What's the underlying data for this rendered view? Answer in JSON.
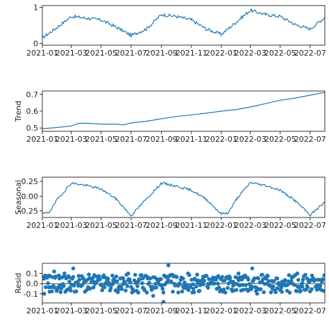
{
  "chart_data": [
    {
      "type": "line",
      "panel": "observed",
      "ylabel": "",
      "ylim": [
        -0.05,
        1.05
      ],
      "yticks": [
        0,
        1
      ],
      "xlim": [
        "2021-01-01",
        "2022-07-31"
      ],
      "xtick_labels": [
        "2021-01",
        "2021-03",
        "2021-05",
        "2021-07",
        "2021-09",
        "2021-11",
        "2022-01",
        "2022-03",
        "2022-05",
        "2022-07"
      ],
      "x": [
        "2021-01-01",
        "2021-02-01",
        "2021-03-01",
        "2021-04-01",
        "2021-05-01",
        "2021-06-01",
        "2021-07-01",
        "2021-08-01",
        "2021-09-01",
        "2021-10-01",
        "2021-11-01",
        "2021-12-01",
        "2022-01-01",
        "2022-02-01",
        "2022-03-01",
        "2022-04-01",
        "2022-05-01",
        "2022-06-01",
        "2022-07-01",
        "2022-07-31"
      ],
      "values": [
        0.15,
        0.45,
        0.75,
        0.7,
        0.65,
        0.45,
        0.22,
        0.4,
        0.8,
        0.75,
        0.65,
        0.4,
        0.25,
        0.6,
        0.92,
        0.8,
        0.75,
        0.52,
        0.4,
        0.72
      ],
      "series_color": "#1f77b4"
    },
    {
      "type": "line",
      "panel": "trend",
      "ylabel": "Trend",
      "ylim": [
        0.48,
        0.72
      ],
      "yticks": [
        0.5,
        0.6,
        0.7
      ],
      "xlim": [
        "2021-01-01",
        "2022-07-31"
      ],
      "xtick_labels": [
        "2021-01",
        "2021-03",
        "2021-05",
        "2021-07",
        "2021-09",
        "2021-11",
        "2022-01",
        "2022-03",
        "2022-05",
        "2022-07"
      ],
      "x": [
        "2021-01-01",
        "2021-02-01",
        "2021-03-01",
        "2021-03-15",
        "2021-04-01",
        "2021-05-01",
        "2021-06-01",
        "2021-06-15",
        "2021-07-01",
        "2021-08-01",
        "2021-09-01",
        "2021-10-01",
        "2021-11-01",
        "2021-12-01",
        "2022-01-01",
        "2022-02-01",
        "2022-03-01",
        "2022-04-01",
        "2022-05-01",
        "2022-06-01",
        "2022-07-01",
        "2022-07-31"
      ],
      "values": [
        0.495,
        0.503,
        0.512,
        0.527,
        0.528,
        0.523,
        0.523,
        0.518,
        0.53,
        0.54,
        0.555,
        0.568,
        0.578,
        0.588,
        0.6,
        0.61,
        0.625,
        0.645,
        0.665,
        0.678,
        0.695,
        0.712
      ],
      "series_color": "#1f77b4"
    },
    {
      "type": "line",
      "panel": "seasonal",
      "ylabel": "Seasonal",
      "ylim": [
        -0.36,
        0.32
      ],
      "yticks": [
        -0.25,
        0.0,
        0.25
      ],
      "xlim": [
        "2021-01-01",
        "2022-07-31"
      ],
      "xtick_labels": [
        "2021-01",
        "2021-03",
        "2021-05",
        "2021-07",
        "2021-09",
        "2021-11",
        "2022-01",
        "2022-03",
        "2022-05",
        "2022-07"
      ],
      "x": [
        "2021-01-01",
        "2021-01-15",
        "2021-02-01",
        "2021-03-01",
        "2021-04-01",
        "2021-05-01",
        "2021-06-01",
        "2021-07-01",
        "2021-08-01",
        "2021-09-01",
        "2021-10-01",
        "2021-11-01",
        "2021-12-01",
        "2022-01-01",
        "2022-01-15",
        "2022-02-01",
        "2022-03-01",
        "2022-04-01",
        "2022-05-01",
        "2022-06-01",
        "2022-07-01",
        "2022-07-31"
      ],
      "values": [
        -0.3,
        -0.27,
        -0.05,
        0.22,
        0.18,
        0.12,
        -0.05,
        -0.33,
        -0.05,
        0.22,
        0.17,
        0.1,
        -0.05,
        -0.3,
        -0.28,
        -0.05,
        0.23,
        0.18,
        0.1,
        -0.08,
        -0.32,
        -0.1
      ],
      "series_color": "#1f77b4"
    },
    {
      "type": "scatter",
      "panel": "resid",
      "ylabel": "Resid",
      "ylim": [
        -0.19,
        0.2
      ],
      "yticks": [
        -0.1,
        0.0,
        0.1
      ],
      "baseline": 0,
      "xlim": [
        "2021-01-01",
        "2022-07-31"
      ],
      "xtick_labels": [
        "2021-01",
        "2021-03",
        "2021-05",
        "2021-07",
        "2021-09",
        "2021-11",
        "2022-01",
        "2022-03",
        "2022-05",
        "2022-07"
      ],
      "x": [
        "2021-01-05",
        "2021-01-15",
        "2021-01-25",
        "2021-02-05",
        "2021-02-15",
        "2021-02-25",
        "2021-03-05",
        "2021-03-15",
        "2021-03-25",
        "2021-04-05",
        "2021-04-15",
        "2021-04-25",
        "2021-05-05",
        "2021-05-15",
        "2021-05-25",
        "2021-06-05",
        "2021-06-15",
        "2021-06-25",
        "2021-07-05",
        "2021-07-15",
        "2021-07-25",
        "2021-08-05",
        "2021-08-15",
        "2021-08-25",
        "2021-09-05",
        "2021-09-15",
        "2021-09-25",
        "2021-10-05",
        "2021-10-15",
        "2021-10-25",
        "2021-11-05",
        "2021-11-15",
        "2021-11-25",
        "2021-12-05",
        "2021-12-15",
        "2021-12-25",
        "2022-01-05",
        "2022-01-15",
        "2022-01-25",
        "2022-02-05",
        "2022-02-15",
        "2022-02-25",
        "2022-03-05",
        "2022-03-15",
        "2022-03-25",
        "2022-04-05",
        "2022-04-15",
        "2022-04-25",
        "2022-05-05",
        "2022-05-15",
        "2022-05-25",
        "2022-06-05",
        "2022-06-15",
        "2022-06-25",
        "2022-07-05",
        "2022-07-15",
        "2022-07-25"
      ],
      "values": [
        -0.1,
        0.08,
        0.12,
        0.05,
        0.1,
        0.02,
        0.15,
        -0.02,
        0.05,
        -0.05,
        0.02,
        0.07,
        -0.03,
        0.04,
        0.0,
        -0.06,
        0.05,
        0.1,
        -0.08,
        0.02,
        -0.04,
        0.06,
        -0.12,
        0.02,
        -0.18,
        0.18,
        0.08,
        -0.02,
        0.05,
        0.1,
        -0.05,
        0.03,
        0.07,
        -0.04,
        0.06,
        0.0,
        -0.08,
        0.05,
        -0.02,
        0.1,
        -0.06,
        0.04,
        0.15,
        -0.1,
        0.02,
        0.08,
        -0.05,
        0.05,
        0.02,
        -0.07,
        0.06,
        0.1,
        -0.03,
        0.05,
        0.08,
        -0.06,
        0.04
      ],
      "series_color": "#1f77b4"
    }
  ]
}
